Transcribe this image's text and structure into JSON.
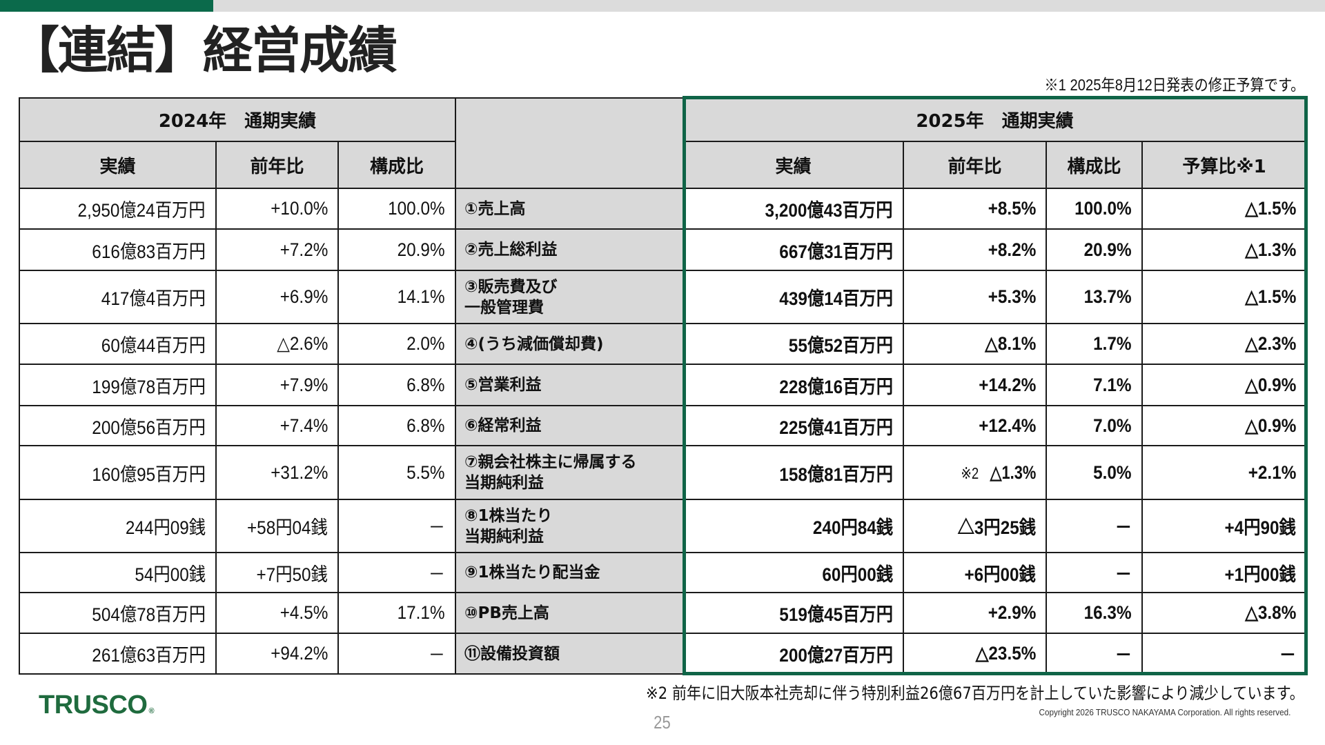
{
  "page": {
    "title": "【連結】経営成績",
    "note1": "※1  2025年8月12日発表の修正予算です。",
    "note2": "※2  前年に旧大阪本社売却に伴う特別利益26億67百万円を計上していた影響により減少しています。",
    "page_number": "25",
    "copyright": "Copyright 2026 TRUSCO NAKAYAMA Corporation. All rights reserved.",
    "logo": "TRUSCO",
    "logo_mark": "®"
  },
  "colors": {
    "accent_green": "#0b6a4b",
    "frame_green": "#0f6447",
    "header_gray": "#d9d9d9",
    "logo_green": "#1f6b3e"
  },
  "table": {
    "group_2024": "2024年　通期実績",
    "group_2025": "2025年　通期実績",
    "headers_2024": [
      "実績",
      "前年比",
      "構成比"
    ],
    "headers_2025": [
      "実績",
      "前年比",
      "構成比",
      "予算比※1"
    ],
    "rows": [
      {
        "label": "①売上高",
        "y2024": [
          "2,950億24百万円",
          "+10.0%",
          "100.0%"
        ],
        "y2025": [
          "3,200億43百万円",
          "+8.5%",
          "100.0%",
          "△1.5%"
        ],
        "note": ""
      },
      {
        "label": "②売上総利益",
        "y2024": [
          "616億83百万円",
          "+7.2%",
          "20.9%"
        ],
        "y2025": [
          "667億31百万円",
          "+8.2%",
          "20.9%",
          "△1.3%"
        ],
        "note": ""
      },
      {
        "label": "③販売費及び\n一般管理費",
        "y2024": [
          "417億4百万円",
          "+6.9%",
          "14.1%"
        ],
        "y2025": [
          "439億14百万円",
          "+5.3%",
          "13.7%",
          "△1.5%"
        ],
        "note": ""
      },
      {
        "label": "④(うち減価償却費)",
        "y2024": [
          "60億44百万円",
          "△2.6%",
          "2.0%"
        ],
        "y2025": [
          "55億52百万円",
          "△8.1%",
          "1.7%",
          "△2.3%"
        ],
        "note": ""
      },
      {
        "label": "⑤営業利益",
        "y2024": [
          "199億78百万円",
          "+7.9%",
          "6.8%"
        ],
        "y2025": [
          "228億16百万円",
          "+14.2%",
          "7.1%",
          "△0.9%"
        ],
        "note": ""
      },
      {
        "label": "⑥経常利益",
        "y2024": [
          "200億56百万円",
          "+7.4%",
          "6.8%"
        ],
        "y2025": [
          "225億41百万円",
          "+12.4%",
          "7.0%",
          "△0.9%"
        ],
        "note": ""
      },
      {
        "label": "⑦親会社株主に帰属する\n当期純利益",
        "y2024": [
          "160億95百万円",
          "+31.2%",
          "5.5%"
        ],
        "y2025": [
          "158億81百万円",
          "△1.3%",
          "5.0%",
          "+2.1%"
        ],
        "note": "※2"
      },
      {
        "label": "⑧1株当たり\n当期純利益",
        "y2024": [
          "244円09銭",
          "+58円04銭",
          "－"
        ],
        "y2025": [
          "240円84銭",
          "△3円25銭",
          "－",
          "+4円90銭"
        ],
        "note": ""
      },
      {
        "label": "⑨1株当たり配当金",
        "y2024": [
          "54円00銭",
          "+7円50銭",
          "－"
        ],
        "y2025": [
          "60円00銭",
          "+6円00銭",
          "－",
          "+1円00銭"
        ],
        "note": ""
      },
      {
        "label": "⑩PB売上高",
        "y2024": [
          "504億78百万円",
          "+4.5%",
          "17.1%"
        ],
        "y2025": [
          "519億45百万円",
          "+2.9%",
          "16.3%",
          "△3.8%"
        ],
        "note": ""
      },
      {
        "label": "⑪設備投資額",
        "y2024": [
          "261億63百万円",
          "+94.2%",
          "－"
        ],
        "y2025": [
          "200億27百万円",
          "△23.5%",
          "－",
          "－"
        ],
        "note": ""
      }
    ]
  }
}
